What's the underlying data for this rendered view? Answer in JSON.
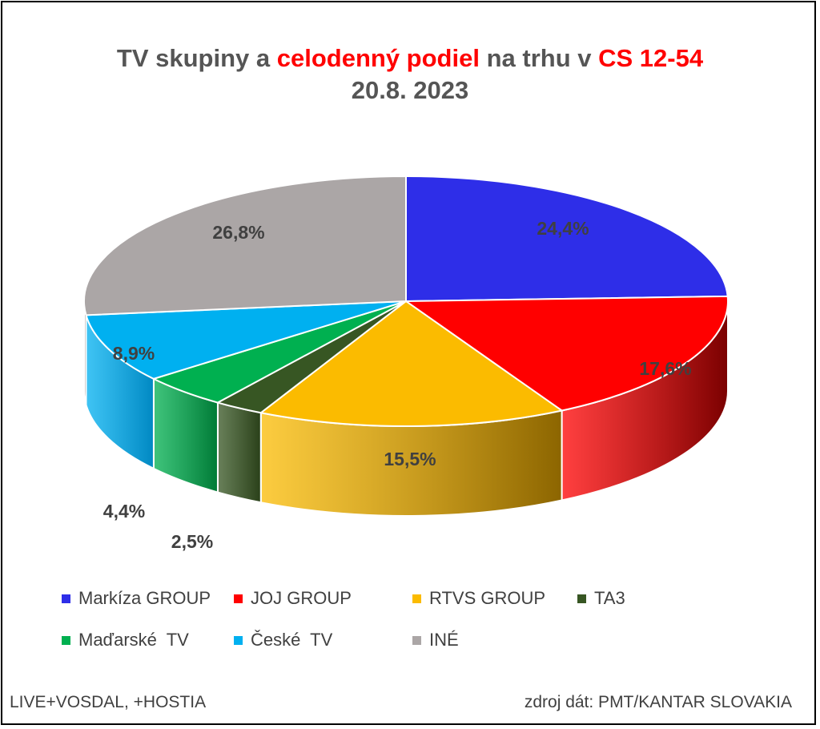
{
  "chart_data": {
    "type": "pie",
    "title_parts": [
      {
        "text": "TV skupiny a ",
        "color": "#555555"
      },
      {
        "text": "celodenný podiel",
        "color": "#ff0000"
      },
      {
        "text": " na trhu v ",
        "color": "#555555"
      },
      {
        "text": "CS 12-54",
        "color": "#ff0000"
      }
    ],
    "subtitle": "20.8. 2023",
    "slices": [
      {
        "name": "Markíza GROUP",
        "value": 24.4,
        "label": "24,4%",
        "color": "#2e2ee8",
        "side": "#1a1a99"
      },
      {
        "name": "JOJ GROUP",
        "value": 17.6,
        "label": "17,6%",
        "color": "#ff0000",
        "side": "#7a0000"
      },
      {
        "name": "RTVS GROUP",
        "value": 15.5,
        "label": "15,5%",
        "color": "#fbbb00",
        "side": "#8c6500"
      },
      {
        "name": "TA3",
        "value": 2.5,
        "label": "2,5%",
        "color": "#375623",
        "side": "#2a4019"
      },
      {
        "name": "Maďarské  TV",
        "value": 4.4,
        "label": "4,4%",
        "color": "#00b050",
        "side": "#007a36"
      },
      {
        "name": "České  TV",
        "value": 8.9,
        "label": "8,9%",
        "color": "#00b0f0",
        "side": "#0088c2"
      },
      {
        "name": "INÉ",
        "value": 26.8,
        "label": "26,8%",
        "color": "#aba6a6",
        "side": "#7a7676"
      }
    ],
    "legend_placement": "bottom"
  },
  "footer": {
    "left": "LIVE+VOSDAL, +HOSTIA",
    "right": "zdroj dát: PMT/KANTAR SLOVAKIA"
  }
}
